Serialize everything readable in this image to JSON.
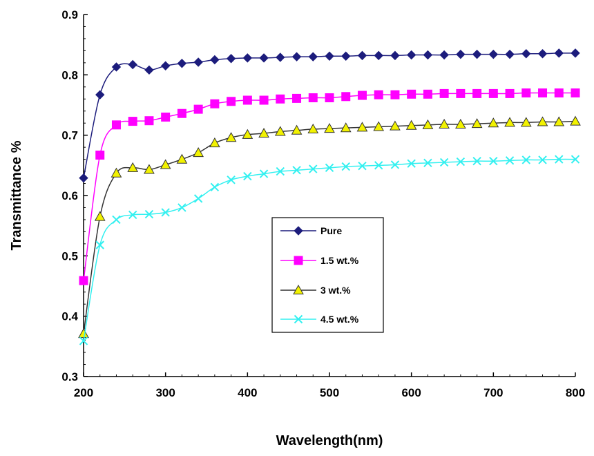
{
  "chart_data": {
    "type": "line",
    "title": "",
    "xlabel": "Wavelength(nm)",
    "ylabel": "Transmittance %",
    "xlim": [
      200,
      800
    ],
    "ylim": [
      0.3,
      0.9
    ],
    "xticks": [
      200,
      300,
      400,
      500,
      600,
      700,
      800
    ],
    "xtick_labels": [
      "200",
      "300",
      "400",
      "500",
      "600",
      "700",
      "800"
    ],
    "yticks": [
      0.3,
      0.4,
      0.5,
      0.6,
      0.7,
      0.8,
      0.9
    ],
    "ytick_labels": [
      "0.3",
      "0.4",
      "0.5",
      "0.6",
      "0.7",
      "0.8",
      "0.9"
    ],
    "grid": false,
    "legend_position": "center",
    "x": [
      200,
      220,
      240,
      260,
      280,
      300,
      320,
      340,
      360,
      380,
      400,
      420,
      440,
      460,
      480,
      500,
      520,
      540,
      560,
      580,
      600,
      620,
      640,
      660,
      680,
      700,
      720,
      740,
      760,
      780,
      800
    ],
    "series": [
      {
        "name": "Pure",
        "color": "#1c1c7c",
        "marker": "diamond",
        "values": [
          0.629,
          0.767,
          0.813,
          0.817,
          0.808,
          0.815,
          0.819,
          0.821,
          0.825,
          0.827,
          0.828,
          0.828,
          0.829,
          0.83,
          0.83,
          0.831,
          0.831,
          0.832,
          0.832,
          0.832,
          0.833,
          0.833,
          0.833,
          0.834,
          0.834,
          0.834,
          0.834,
          0.835,
          0.835,
          0.836,
          0.836
        ]
      },
      {
        "name": "1.5 wt.%",
        "color": "#ff00ff",
        "marker": "square",
        "values": [
          0.459,
          0.667,
          0.717,
          0.723,
          0.724,
          0.73,
          0.736,
          0.743,
          0.752,
          0.756,
          0.758,
          0.758,
          0.76,
          0.761,
          0.762,
          0.762,
          0.764,
          0.766,
          0.767,
          0.767,
          0.768,
          0.768,
          0.769,
          0.769,
          0.769,
          0.769,
          0.769,
          0.77,
          0.77,
          0.77,
          0.77
        ]
      },
      {
        "name": "3 wt.%",
        "color": "#f2f200",
        "marker": "triangle",
        "values": [
          0.371,
          0.565,
          0.637,
          0.646,
          0.643,
          0.651,
          0.66,
          0.671,
          0.687,
          0.696,
          0.701,
          0.703,
          0.706,
          0.708,
          0.71,
          0.711,
          0.712,
          0.713,
          0.714,
          0.715,
          0.716,
          0.717,
          0.718,
          0.718,
          0.719,
          0.72,
          0.721,
          0.721,
          0.722,
          0.722,
          0.723
        ]
      },
      {
        "name": "4.5 wt.%",
        "color": "#33f0f0",
        "marker": "x",
        "values": [
          0.359,
          0.518,
          0.56,
          0.568,
          0.569,
          0.572,
          0.58,
          0.595,
          0.614,
          0.626,
          0.632,
          0.636,
          0.64,
          0.642,
          0.644,
          0.646,
          0.648,
          0.649,
          0.65,
          0.651,
          0.653,
          0.654,
          0.655,
          0.656,
          0.657,
          0.657,
          0.658,
          0.659,
          0.659,
          0.66,
          0.66
        ]
      }
    ]
  }
}
